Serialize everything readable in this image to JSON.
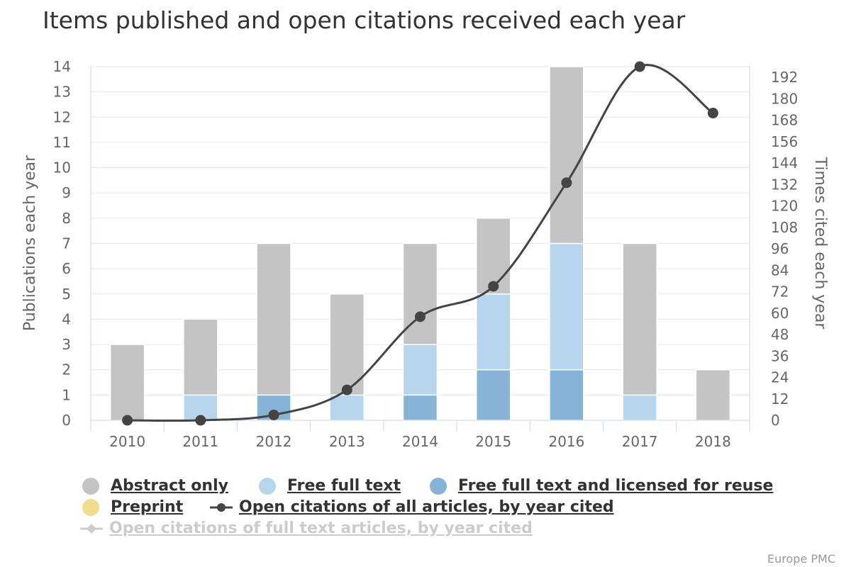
{
  "title": "Items published and open citations received each year",
  "credits": "Europe PMC",
  "chart_data": {
    "type": "bar",
    "stacked": true,
    "categories": [
      "2010",
      "2011",
      "2012",
      "2013",
      "2014",
      "2015",
      "2016",
      "2017",
      "2018"
    ],
    "ylabel_left": "Publications each year",
    "ylabel_right": "Times cited each year",
    "ylim_left": [
      0,
      14
    ],
    "ylim_right": [
      0,
      198
    ],
    "yticks_left": [
      0,
      1,
      2,
      3,
      4,
      5,
      6,
      7,
      8,
      9,
      10,
      11,
      12,
      13,
      14
    ],
    "yticks_right": [
      0,
      12,
      24,
      36,
      48,
      60,
      72,
      84,
      96,
      108,
      120,
      132,
      144,
      156,
      168,
      180,
      192
    ],
    "grid": true,
    "legend_placement": "bottom",
    "series": [
      {
        "name": "Abstract only",
        "color": "#c4c4c4",
        "axis": "left",
        "values": [
          3,
          3,
          6,
          4,
          4,
          3,
          7,
          6,
          2
        ]
      },
      {
        "name": "Free full text",
        "color": "#b7d6ee",
        "axis": "left",
        "values": [
          0,
          1,
          0,
          1,
          2,
          3,
          5,
          1,
          0
        ]
      },
      {
        "name": "Free full text and licensed for reuse",
        "color": "#86b3d6",
        "axis": "left",
        "values": [
          0,
          0,
          1,
          0,
          1,
          2,
          2,
          0,
          0
        ]
      },
      {
        "name": "Preprint",
        "color": "#f0de8c",
        "axis": "left",
        "values": [
          0,
          0,
          0,
          0,
          0,
          0,
          0,
          0,
          0
        ]
      }
    ],
    "lines": [
      {
        "name": "Open citations of all articles, by year cited",
        "color": "#444444",
        "axis": "right",
        "type": "spline",
        "values": [
          0,
          0,
          3,
          17,
          58,
          75,
          133,
          198,
          172
        ]
      },
      {
        "name": "Open citations of full text articles, by year cited",
        "color": "#cccccc",
        "axis": "right",
        "hidden": true,
        "values": []
      }
    ]
  }
}
